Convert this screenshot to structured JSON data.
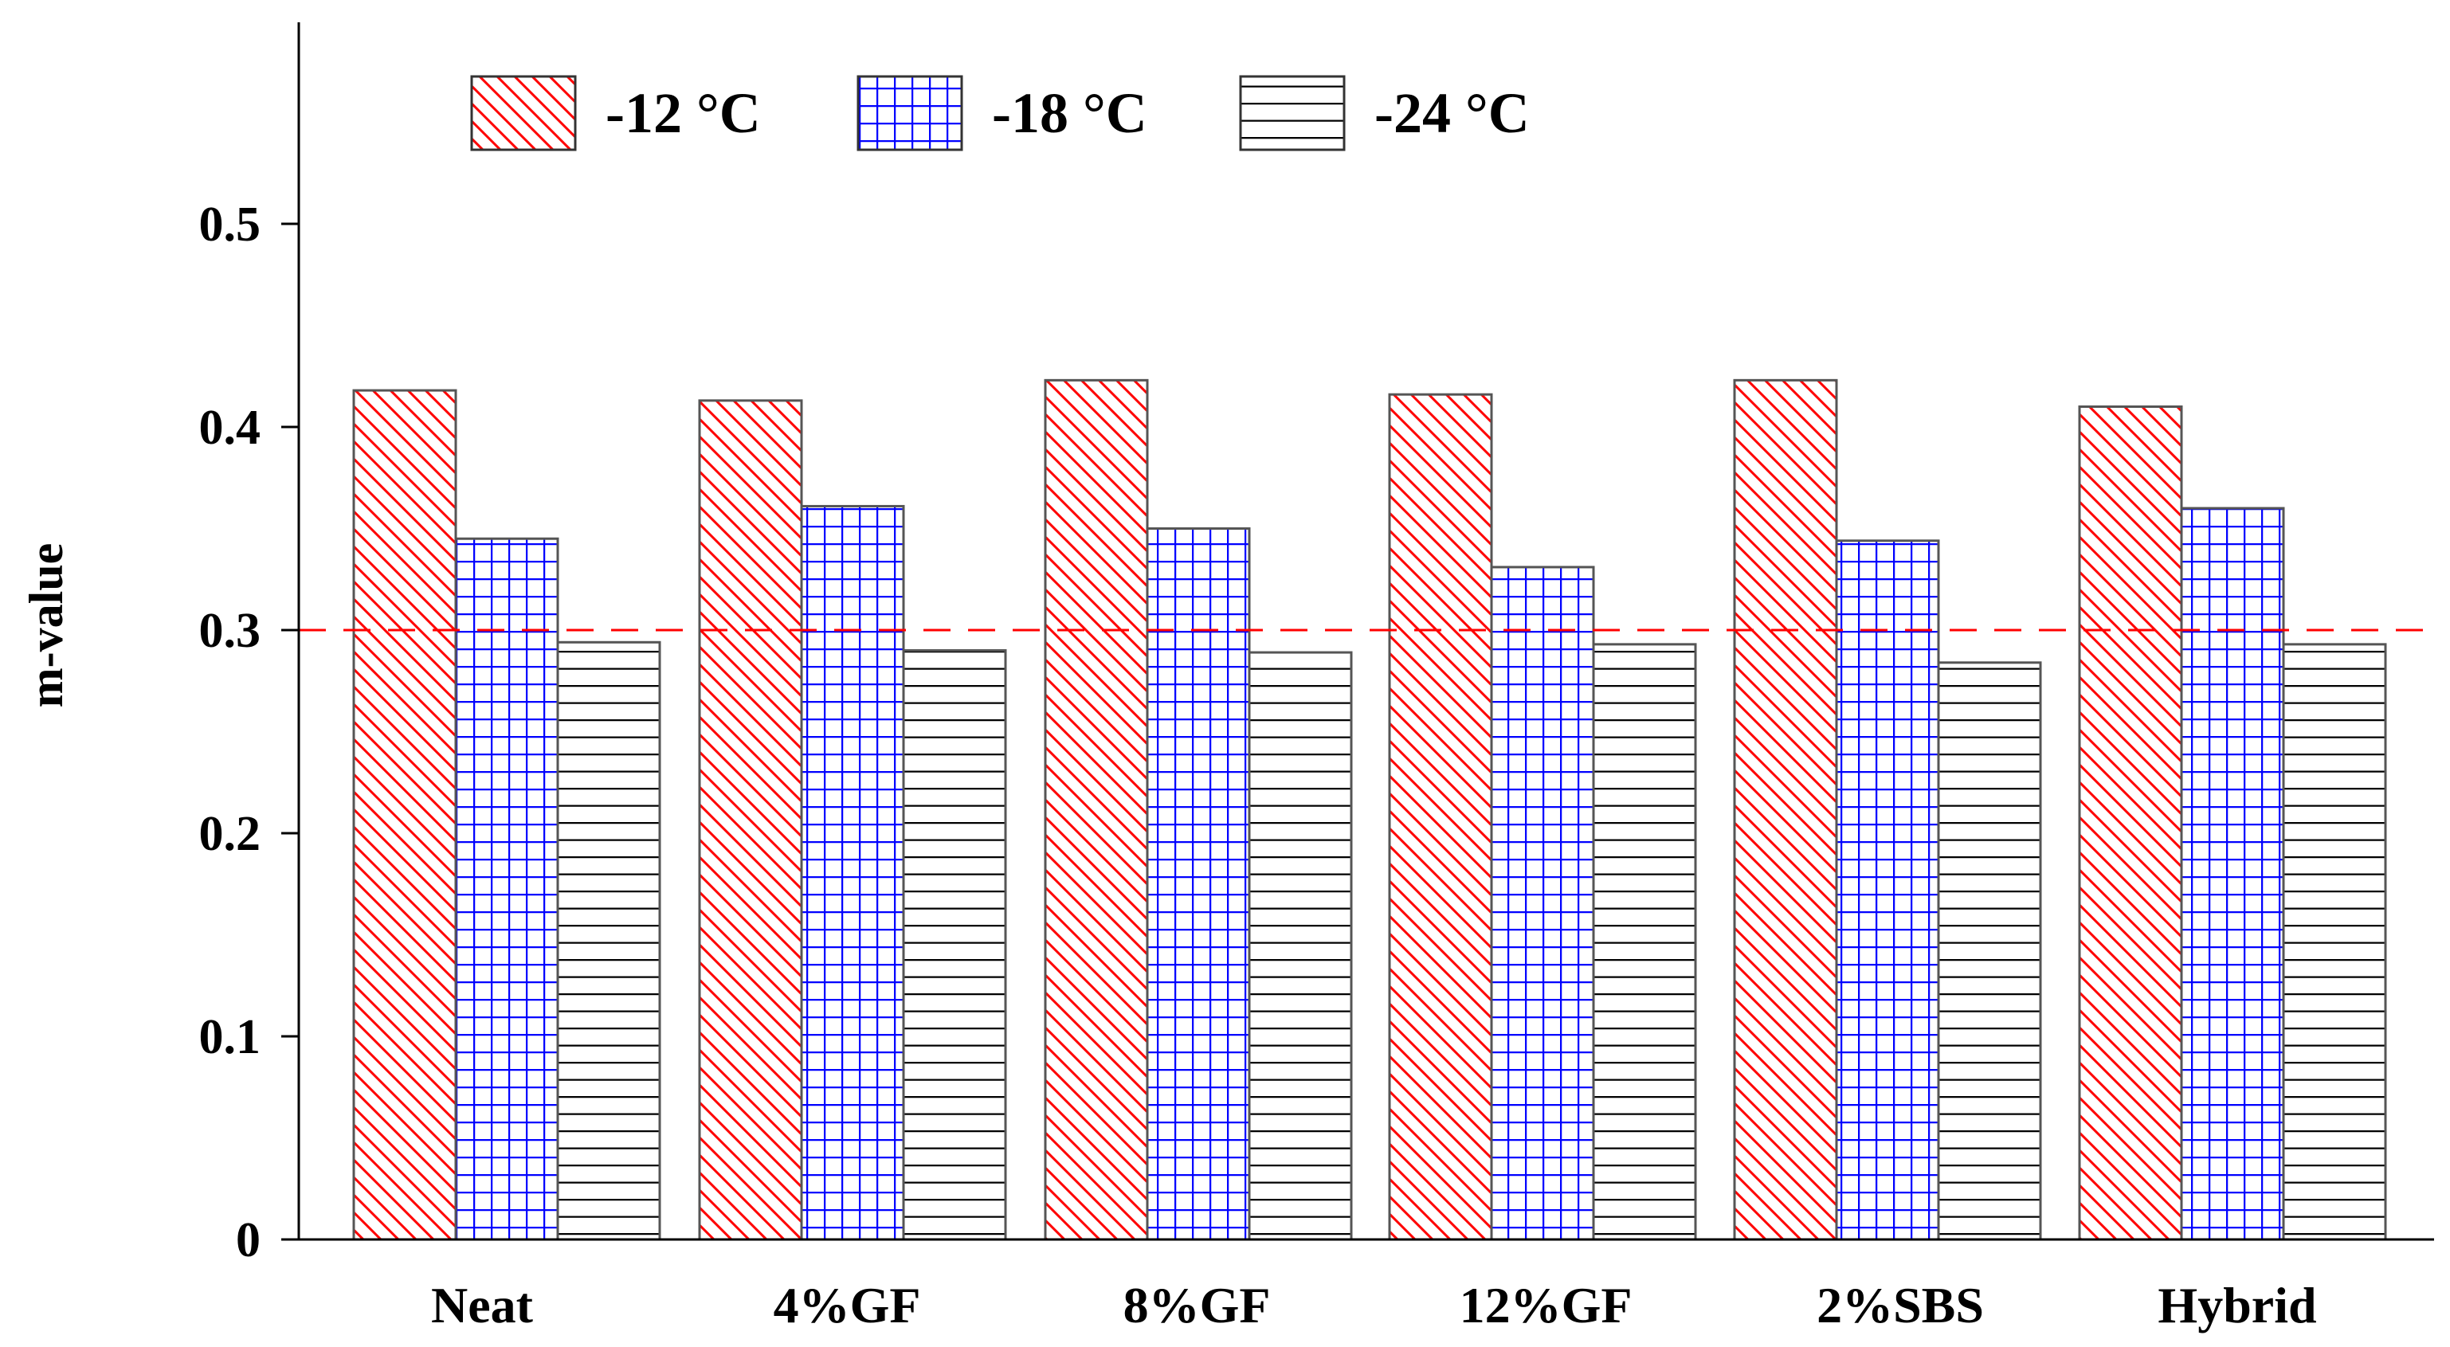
{
  "chart_data": {
    "type": "bar",
    "title": "",
    "xlabel": "",
    "ylabel": "m-value",
    "ylim": [
      0,
      0.6
    ],
    "yticks": [
      0,
      0.1,
      0.2,
      0.3,
      0.4,
      0.5
    ],
    "ytick_labels": [
      "0",
      "0.1",
      "0.2",
      "0.3",
      "0.4",
      "0.5"
    ],
    "grid": false,
    "legend_position": "top-left",
    "categories": [
      "Neat",
      "4%GF",
      "8%GF",
      "12%GF",
      "2%SBS",
      "Hybrid"
    ],
    "series": [
      {
        "name": "-12 °C",
        "values": [
          0.418,
          0.413,
          0.423,
          0.416,
          0.423,
          0.41
        ],
        "color": "#ff0000",
        "pattern": "diagonal-hatch"
      },
      {
        "name": "-18 °C",
        "values": [
          0.345,
          0.361,
          0.35,
          0.331,
          0.344,
          0.36
        ],
        "color": "#0000ff",
        "pattern": "grid"
      },
      {
        "name": "-24 °C",
        "values": [
          0.294,
          0.29,
          0.289,
          0.293,
          0.284,
          0.293
        ],
        "color": "#000000",
        "pattern": "horizontal-lines"
      }
    ],
    "reference_line": {
      "y": 0.3,
      "color": "#ff0000",
      "style": "dashed"
    }
  }
}
